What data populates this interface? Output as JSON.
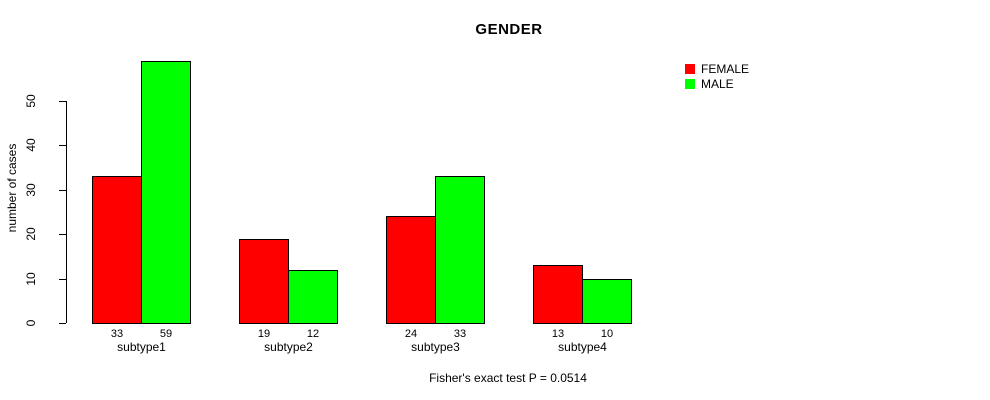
{
  "title": "GENDER",
  "ylabel": "number of cases",
  "annotation": "Fisher's exact test P = 0.0514",
  "colors": {
    "female": "#FF0000",
    "male": "#00FF00",
    "axis": "#000000",
    "background": "#FFFFFF"
  },
  "chart_data": {
    "type": "bar",
    "grouped": true,
    "title": "GENDER",
    "xlabel": "",
    "ylabel": "number of cases",
    "categories": [
      "subtype1",
      "subtype2",
      "subtype3",
      "subtype4"
    ],
    "series": [
      {
        "name": "FEMALE",
        "color": "#FF0000",
        "values": [
          33,
          19,
          24,
          13
        ]
      },
      {
        "name": "MALE",
        "color": "#00FF00",
        "values": [
          59,
          12,
          33,
          10
        ]
      }
    ],
    "bar_value_labels": [
      [
        "33",
        "59"
      ],
      [
        "19",
        "12"
      ],
      [
        "24",
        "33"
      ],
      [
        "13",
        "10"
      ]
    ],
    "yticks": [
      0,
      10,
      20,
      30,
      40,
      50
    ],
    "ylim": [
      0,
      59
    ],
    "grid": false,
    "legend_position": "top-right",
    "annotation": "Fisher's exact test P = 0.0514"
  }
}
